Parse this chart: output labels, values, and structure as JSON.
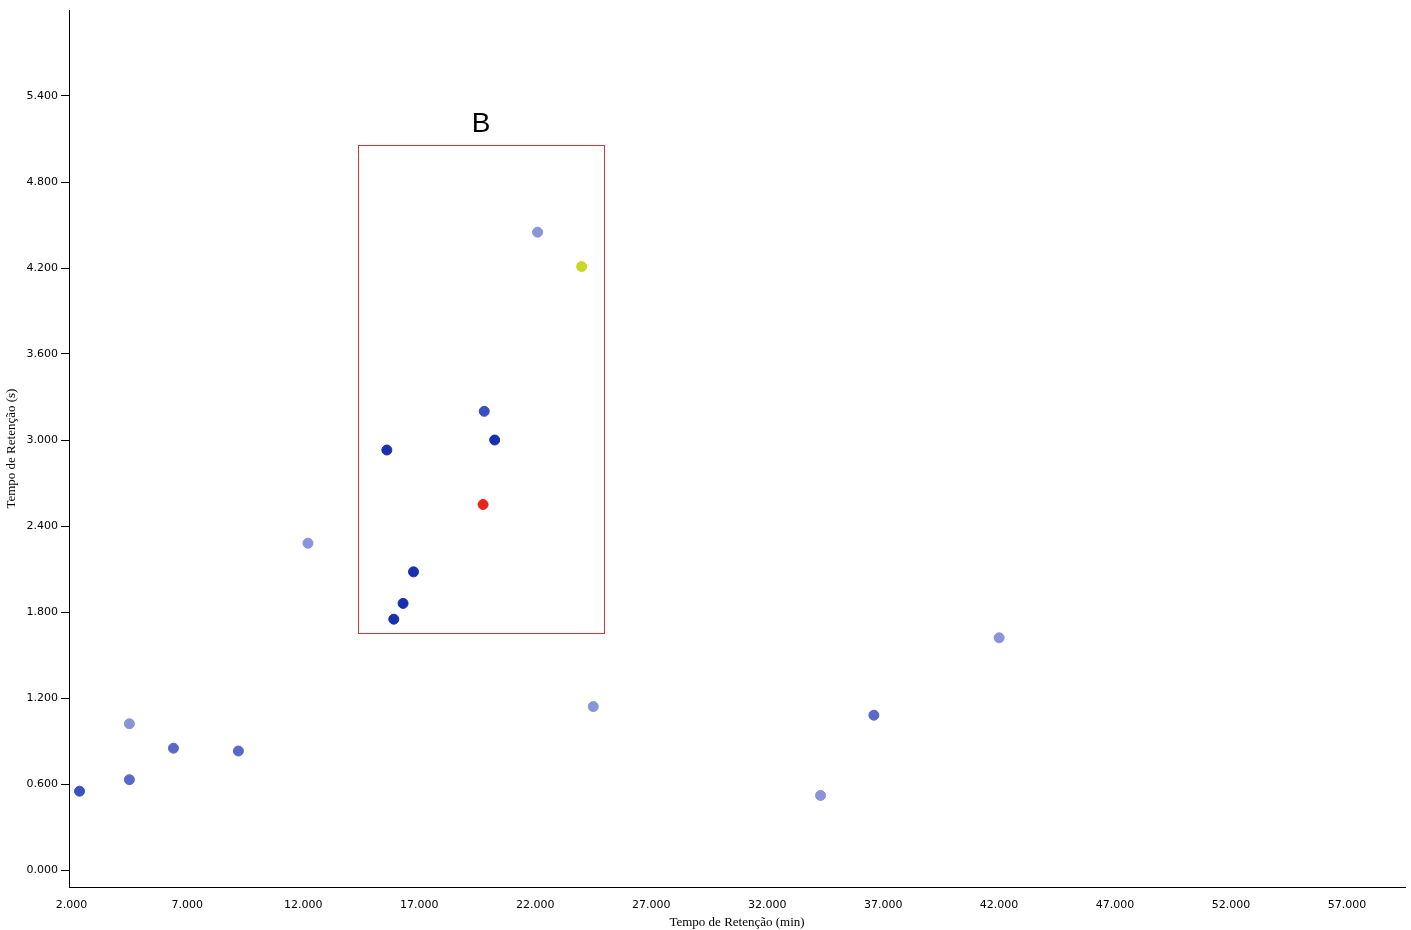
{
  "chart_data": {
    "type": "scatter",
    "xlabel": "Tempo de Retenção (min)",
    "ylabel": "Tempo de Retenção (s)",
    "annotations": [
      "B"
    ],
    "x": [
      15.6,
      19.75,
      20.25,
      19.8,
      16.75,
      16.3,
      15.9,
      24.0,
      22.1,
      12.2,
      2.35,
      4.5,
      6.4,
      9.2,
      36.6,
      42.0,
      34.3,
      24.5,
      4.5
    ],
    "series": [
      {
        "values": [
          2.93,
          2.55,
          3.0,
          3.2,
          2.08,
          1.86,
          1.75,
          4.21,
          4.45,
          2.28,
          0.55,
          0.63,
          0.85,
          0.83,
          1.08,
          1.62,
          0.52,
          1.14,
          1.02
        ],
        "colors": [
          "#1a2fb0",
          "#e8241c",
          "#1a2fb0",
          "#3a4fc0",
          "#1a2fb0",
          "#1a2fb0",
          "#1a2fb0",
          "#c8d820",
          "#8a94d8",
          "#8a94d8",
          "#3a4fc0",
          "#5a68c8",
          "#5a68c8",
          "#5a68c8",
          "#5a68c8",
          "#8a94d8",
          "#8a94d8",
          "#8a94d8",
          "#8a94d8"
        ]
      }
    ],
    "xlim": [
      1.9,
      59.5
    ],
    "ylim": [
      -0.12,
      6.0
    ],
    "xticks": [
      {
        "value": 2,
        "label": "2.000"
      },
      {
        "value": 7,
        "label": "7.000"
      },
      {
        "value": 12,
        "label": "12.000"
      },
      {
        "value": 17,
        "label": "17.000"
      },
      {
        "value": 22,
        "label": "22.000"
      },
      {
        "value": 27,
        "label": "27.000"
      },
      {
        "value": 32,
        "label": "32.000"
      },
      {
        "value": 37,
        "label": "37.000"
      },
      {
        "value": 42,
        "label": "42.000"
      },
      {
        "value": 47,
        "label": "47.000"
      },
      {
        "value": 52,
        "label": "52.000"
      },
      {
        "value": 57,
        "label": "57.000"
      }
    ],
    "yticks": [
      {
        "value": 0,
        "label": "0.000"
      },
      {
        "value": 0.6,
        "label": "0.600"
      },
      {
        "value": 1.2,
        "label": "1.200"
      },
      {
        "value": 1.8,
        "label": "1.800"
      },
      {
        "value": 2.4,
        "label": "2.400"
      },
      {
        "value": 3.0,
        "label": "3.000"
      },
      {
        "value": 3.6,
        "label": "3.600"
      },
      {
        "value": 4.2,
        "label": "4.200"
      },
      {
        "value": 4.8,
        "label": "4.800"
      },
      {
        "value": 5.4,
        "label": "5.400"
      }
    ],
    "grid": false,
    "legend": false,
    "marker": "circle"
  }
}
